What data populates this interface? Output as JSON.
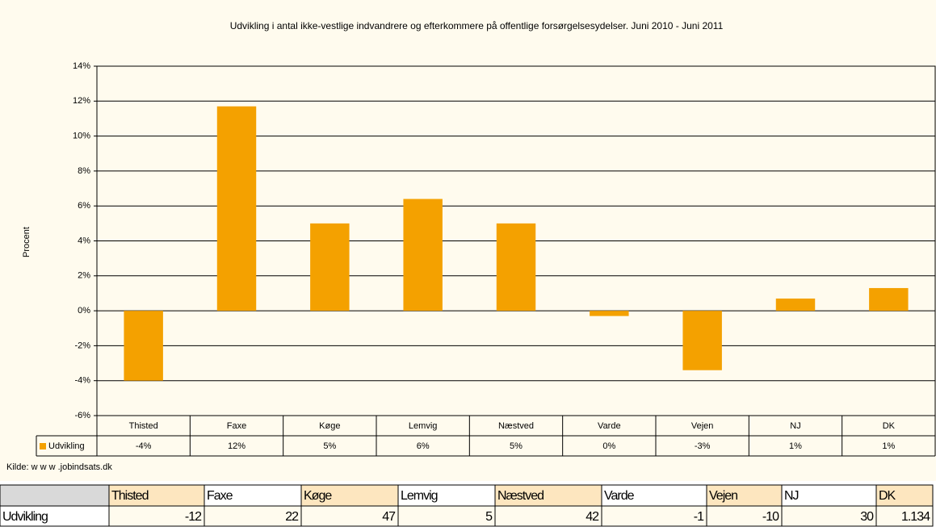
{
  "chart_data": {
    "type": "bar",
    "title": "Udvikling i antal ikke-vestlige indvandrere og efterkommere på offentlige forsørgelsesydelser. Juni 2010 - Juni 2011",
    "y_label": "Procent",
    "categories": [
      "Thisted",
      "Faxe",
      "Køge",
      "Lemvig",
      "Næstved",
      "Varde",
      "Vejen",
      "NJ",
      "DK"
    ],
    "series": [
      {
        "name": "Udvikling",
        "color": "#f4a100",
        "values": [
          -4.0,
          11.7,
          5.0,
          6.4,
          5.0,
          -0.3,
          -3.4,
          0.7,
          1.3
        ],
        "value_labels": [
          "-4%",
          "12%",
          "5%",
          "6%",
          "5%",
          "0%",
          "-3%",
          "1%",
          "1%"
        ]
      }
    ],
    "ylim": [
      -6,
      14
    ],
    "yticks": [
      {
        "value": -6,
        "label": "-6%"
      },
      {
        "value": -4,
        "label": "-4%"
      },
      {
        "value": -2,
        "label": "-2%"
      },
      {
        "value": 0,
        "label": "0%"
      },
      {
        "value": 2,
        "label": "2%"
      },
      {
        "value": 4,
        "label": "4%"
      },
      {
        "value": 6,
        "label": "6%"
      },
      {
        "value": 8,
        "label": "8%"
      },
      {
        "value": 10,
        "label": "10%"
      },
      {
        "value": 12,
        "label": "12%"
      },
      {
        "value": 14,
        "label": "14%"
      }
    ],
    "grid": true,
    "source": "Kilde: w w w .jobindsats.dk"
  },
  "table": {
    "header": [
      "Thisted",
      "Faxe",
      "Køge",
      "Lemvig",
      "Næstved",
      "Varde",
      "Vejen",
      "NJ",
      "DK"
    ],
    "rows": [
      [
        "Udvikling",
        "-12",
        "22",
        "47",
        "5",
        "42",
        "-1",
        "-10",
        "30",
        "1.134"
      ]
    ]
  }
}
